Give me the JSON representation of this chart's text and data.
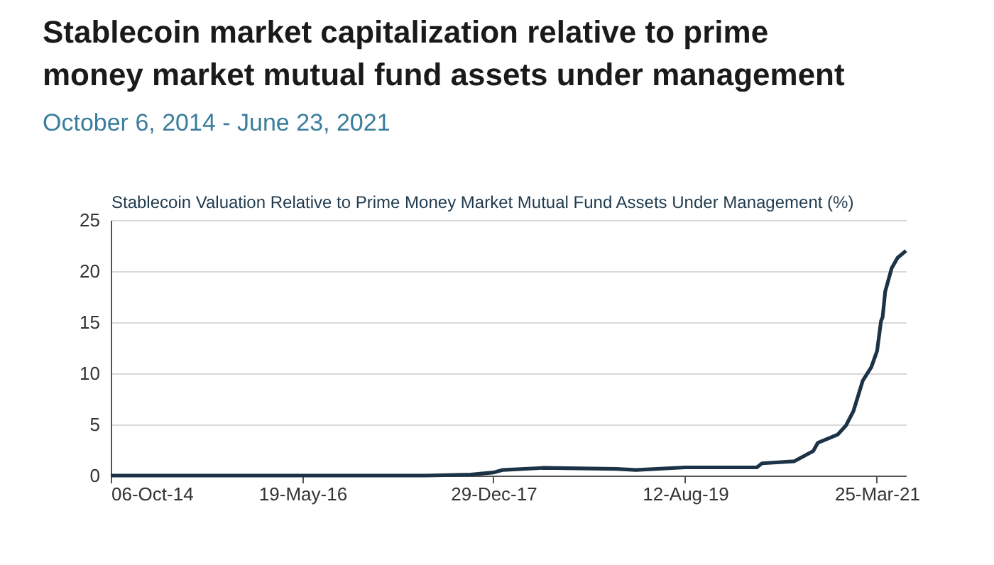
{
  "chart_data": {
    "type": "line",
    "title": "Stablecoin market capitalization relative to prime money market mutual fund assets under management",
    "subtitle": "October 6, 2014 - June 23, 2021",
    "ylabel": "Stablecoin Valuation Relative to Prime Money Market Mutual Fund Assets Under Management (%)",
    "x": [
      "2014-10-06",
      "2017-06-05",
      "2017-10-20",
      "2017-12-29",
      "2018-01-27",
      "2018-06-01",
      "2019-01-13",
      "2019-03-13",
      "2019-08-12",
      "2020-02-20",
      "2020-03-20",
      "2020-04-05",
      "2020-07-14",
      "2020-09-10",
      "2020-09-24",
      "2020-11-24",
      "2020-12-20",
      "2021-01-12",
      "2021-02-10",
      "2021-03-08",
      "2021-03-26",
      "2021-04-07",
      "2021-04-12",
      "2021-04-20",
      "2021-05-10",
      "2021-05-28",
      "2021-06-23"
    ],
    "series": [
      {
        "color": "#1c3347",
        "values": [
          0,
          0,
          0.1,
          0.3,
          0.55,
          0.75,
          0.65,
          0.55,
          0.8,
          0.8,
          0.8,
          1.2,
          1.4,
          2.4,
          3.2,
          4.0,
          4.9,
          6.3,
          9.3,
          10.6,
          12.2,
          15.1,
          15.5,
          18,
          20.3,
          21.3,
          22
        ]
      }
    ],
    "xlim": [
      "2014-10-06",
      "2021-06-23"
    ],
    "xticks": [
      {
        "value": "2014-10-06",
        "label": "06-Oct-14"
      },
      {
        "value": "2016-05-19",
        "label": "19-May-16"
      },
      {
        "value": "2017-12-29",
        "label": "29-Dec-17"
      },
      {
        "value": "2019-08-12",
        "label": "12-Aug-19"
      },
      {
        "value": "2021-03-25",
        "label": "25-Mar-21"
      }
    ],
    "ylim": [
      0,
      25
    ],
    "yticks": [
      0,
      5,
      10,
      15,
      20,
      25
    ],
    "grid": "y",
    "legend": false,
    "marker": "none",
    "line_style": "solid"
  }
}
